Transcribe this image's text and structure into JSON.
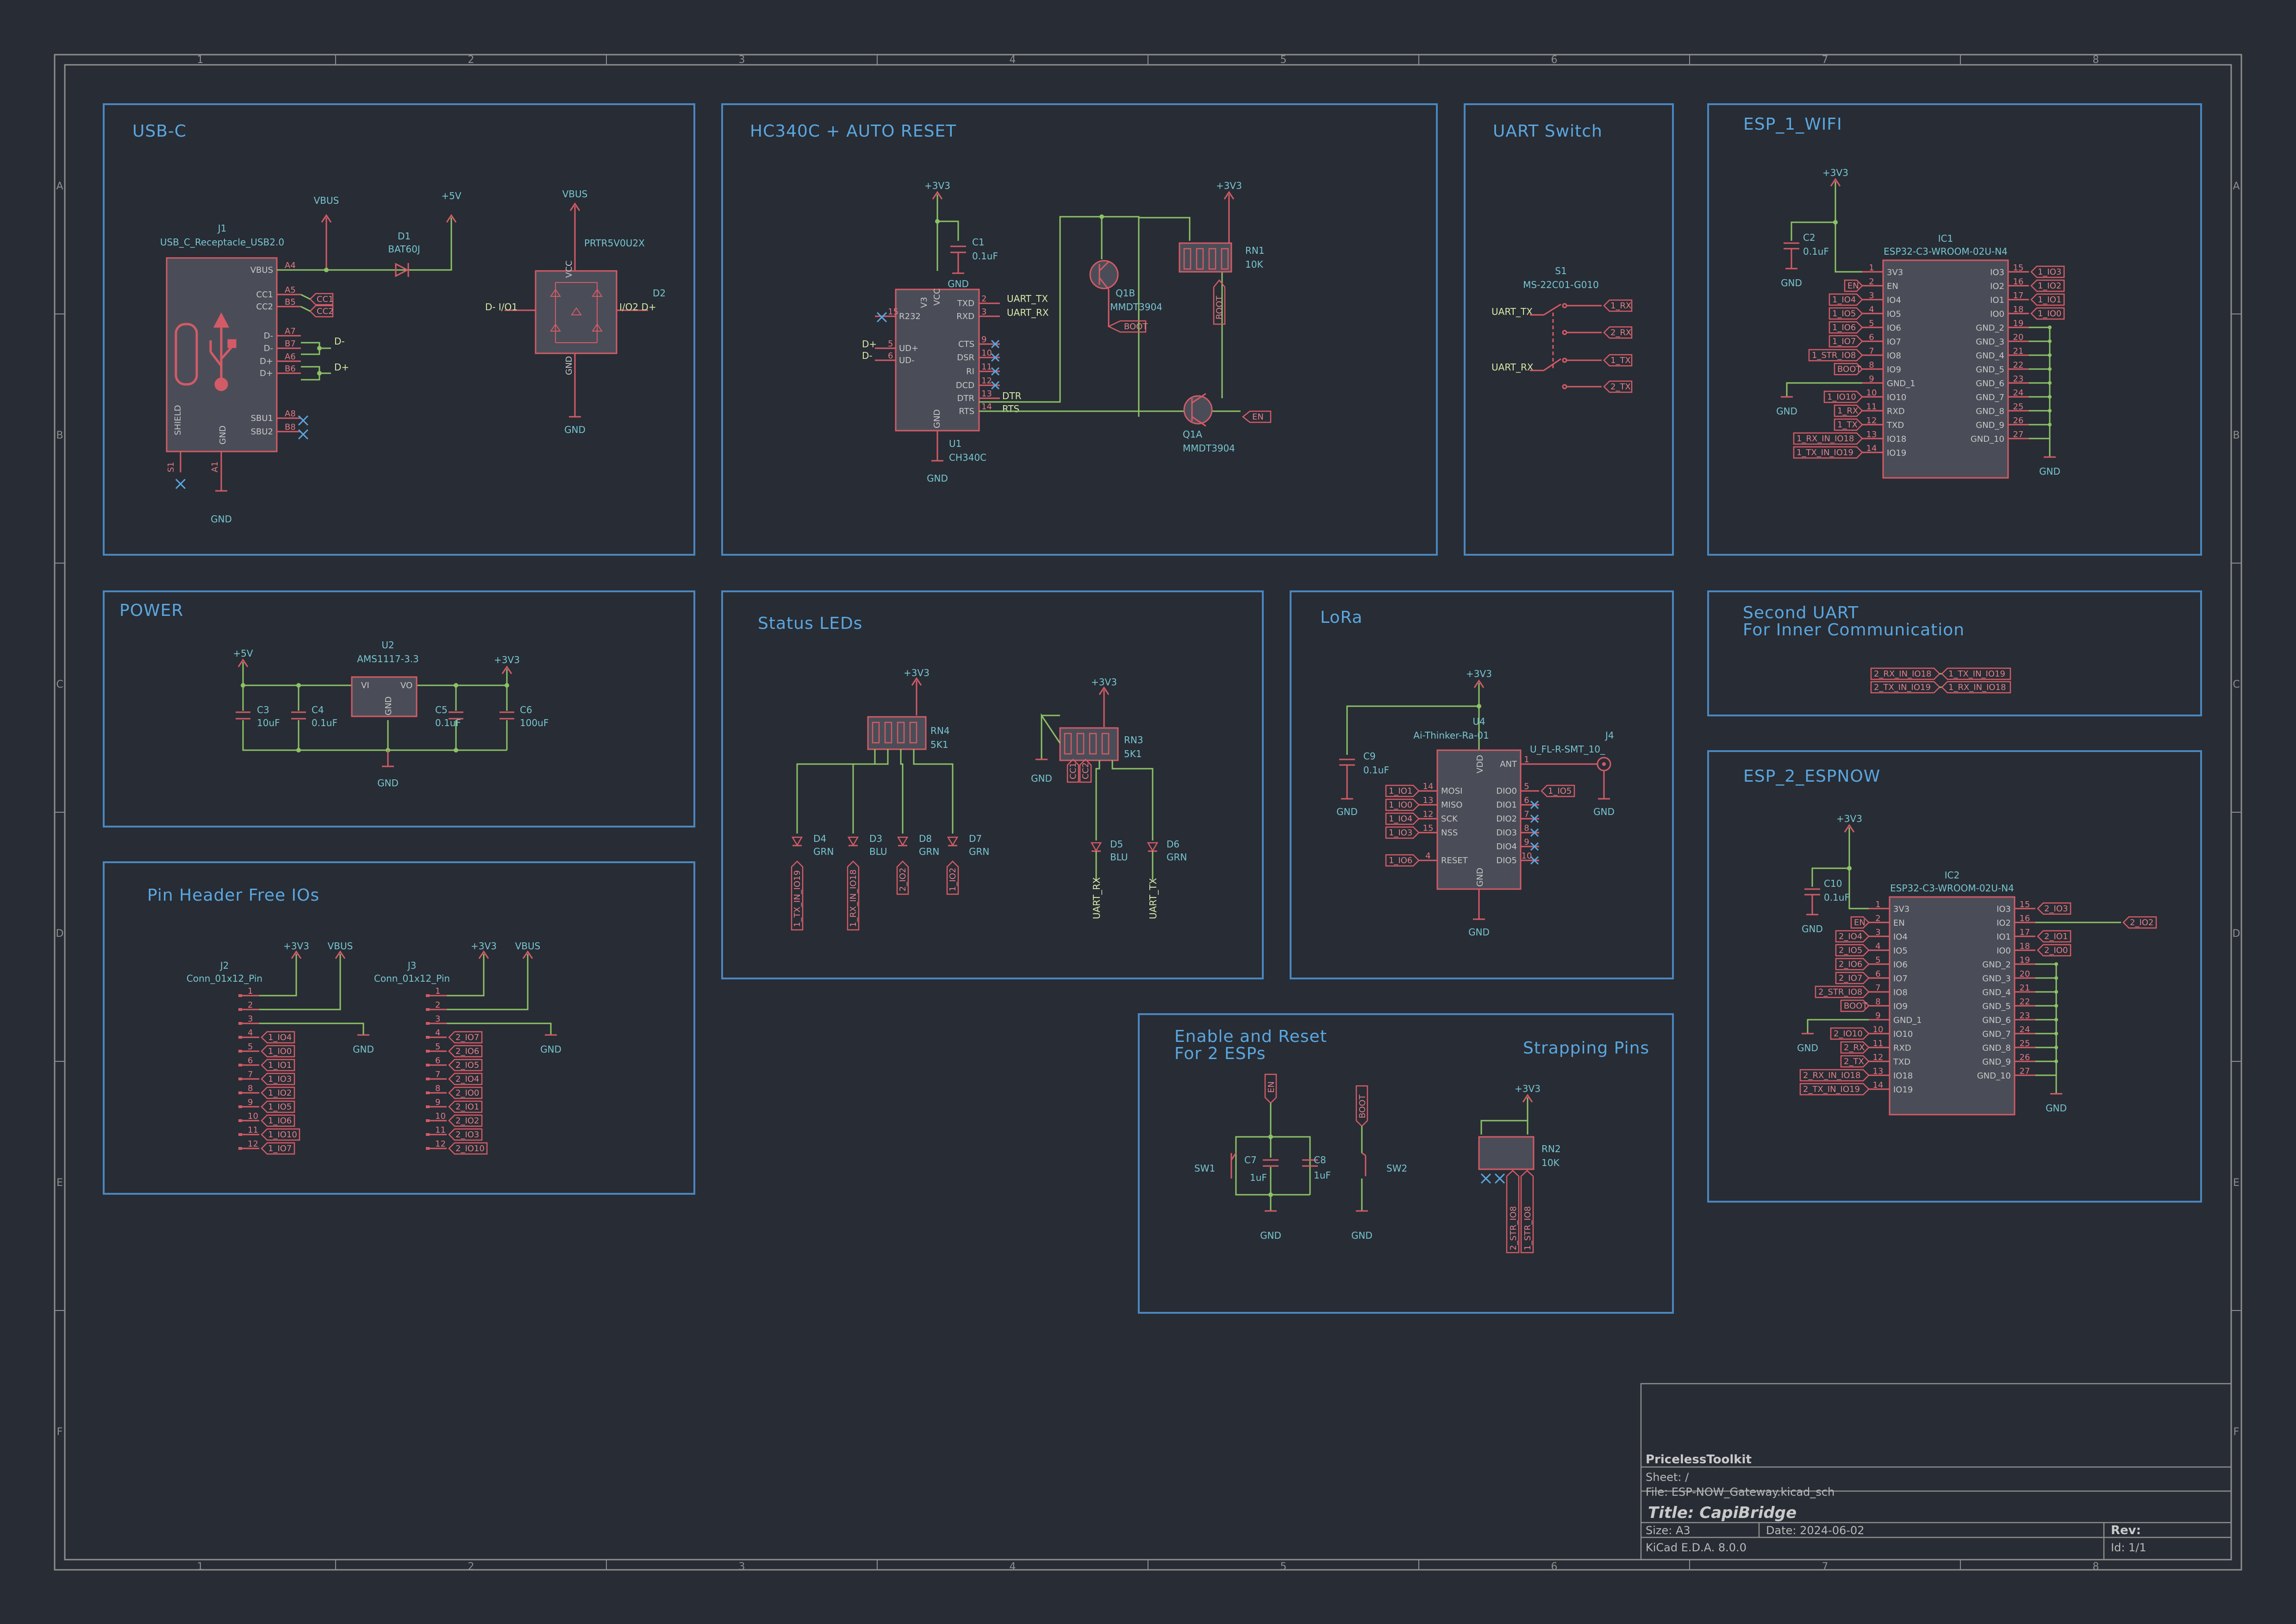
{
  "blocks": {
    "usbc": "USB-C",
    "hc340": "HC340C + AUTO RESET",
    "uart_switch": "UART Switch",
    "esp1": "ESP_1_WIFI",
    "power": "POWER",
    "status_leds": "Status LEDs",
    "lora": "LoRa",
    "second_uart_1": "Second UART",
    "second_uart_2": "For Inner Communication",
    "esp2": "ESP_2_ESPNOW",
    "pin_header": "Pin Header Free IOs",
    "enable_reset_1": "Enable and Reset",
    "enable_reset_2": "For 2 ESPs",
    "strapping": "Strapping Pins"
  },
  "usbc": {
    "ref": "J1",
    "value": "USB_C_Receptacle_USB2.0",
    "vbus": "VBUS",
    "v5": "+5V",
    "d1_ref": "D1",
    "d1_val": "BAT60J",
    "pins_left": [
      "VBUS",
      "CC1",
      "CC2",
      "D-",
      "D-",
      "D+",
      "D+",
      "SBU1",
      "SBU2"
    ],
    "pin_nums": [
      "A4",
      "A5",
      "B5",
      "A7",
      "B7",
      "A6",
      "B6",
      "A8",
      "B8"
    ],
    "cc1": "CC1",
    "cc2": "CC2",
    "dm": "D-",
    "dp": "D+",
    "shield": "SHIELD",
    "gnd_pin": "GND",
    "s1": "S1",
    "a1": "A1",
    "gnd": "GND",
    "esd_ref": "D2",
    "esd_val": "PRTR5V0U2X",
    "esd_vbus": "VBUS",
    "esd_gnd": "GND",
    "io1": "D- I/O1",
    "io2": "I/O2 D+",
    "vcc": "VCC",
    "gndp": "GND"
  },
  "hc340": {
    "v33": "+3V3",
    "c1_ref": "C1",
    "c1_val": "0.1uF",
    "gnd_c": "GND",
    "u1_ref": "U1",
    "u1_val": "CH340C",
    "pins_left": [
      "R232",
      "UD+",
      "UD-"
    ],
    "pins_right": [
      "TXD",
      "RXD",
      "CTS",
      "DSR",
      "RI",
      "DCD",
      "DTR",
      "RTS"
    ],
    "vcc": "VCC",
    "v3": "V3",
    "gndp": "GND",
    "dp": "D+",
    "dm": "D-",
    "uart_tx": "UART_TX",
    "uart_rx": "UART_RX",
    "dtr": "DTR",
    "rts": "RTS",
    "q1b_ref": "Q1B",
    "q1b_val": "MMDT3904",
    "q1a_ref": "Q1A",
    "q1a_val": "MMDT3904",
    "boot": "BOOT",
    "en": "EN",
    "rn1_ref": "RN1",
    "rn1_val": "10K",
    "v33b": "+3V3",
    "gnd": "GND"
  },
  "uart_switch": {
    "ref": "S1",
    "value": "MS-22C01-G010",
    "uart_tx": "UART_TX",
    "uart_rx": "UART_RX",
    "out": [
      "1_RX",
      "2_RX",
      "1_TX",
      "2_TX"
    ]
  },
  "esp1": {
    "v33": "+3V3",
    "c2_ref": "C2",
    "c2_val": "0.1uF",
    "gnd": "GND",
    "ic_ref": "IC1",
    "ic_val": "ESP32-C3-WROOM-02U-N4",
    "left_pins": [
      "3V3",
      "EN",
      "IO4",
      "IO5",
      "IO6",
      "IO7",
      "IO8",
      "IO9",
      "GND_1",
      "IO10",
      "RXD",
      "TXD",
      "IO18",
      "IO19"
    ],
    "left_nums": [
      "1",
      "2",
      "3",
      "4",
      "5",
      "6",
      "7",
      "8",
      "9",
      "10",
      "11",
      "12",
      "13",
      "14"
    ],
    "left_labels": [
      "EN",
      "1_IO4",
      "1_IO5",
      "1_IO6",
      "1_IO7",
      "1_STR_IO8",
      "BOOT",
      "1_IO10",
      "1_RX",
      "1_TX",
      "1_RX_IN_IO18",
      "1_TX_IN_IO19"
    ],
    "right_pins": [
      "IO3",
      "IO2",
      "IO1",
      "IO0",
      "GND_2",
      "GND_3",
      "GND_4",
      "GND_5",
      "GND_6",
      "GND_7",
      "GND_8",
      "GND_9",
      "GND_10"
    ],
    "right_nums": [
      "15",
      "16",
      "17",
      "18",
      "19",
      "20",
      "21",
      "22",
      "23",
      "24",
      "25",
      "26",
      "27"
    ],
    "right_labels": [
      "1_IO3",
      "1_IO2",
      "1_IO1",
      "1_IO0"
    ],
    "gnd_r": "GND"
  },
  "power": {
    "v5": "+5V",
    "v33": "+3V3",
    "u2_ref": "U2",
    "u2_val": "AMS1117-3.3",
    "vi": "VI",
    "vo": "VO",
    "gndp": "GND",
    "c3": "C3",
    "c3v": "10uF",
    "c4": "C4",
    "c4v": "0.1uF",
    "c5": "C5",
    "c5v": "0.1uF",
    "c6": "C6",
    "c6v": "100uF",
    "gnd": "GND"
  },
  "status_leds": {
    "v33a": "+3V3",
    "rn4_ref": "RN4",
    "rn4_val": "5K1",
    "v33b": "+3V3",
    "rn3_ref": "RN3",
    "rn3_val": "5K1",
    "gnd": "GND",
    "leds": [
      {
        "ref": "D4",
        "val": "GRN",
        "net": "1_TX_IN_IO19"
      },
      {
        "ref": "D3",
        "val": "BLU",
        "net": "1_RX_IN_IO18"
      },
      {
        "ref": "D8",
        "val": "GRN",
        "net": "2_IO2"
      },
      {
        "ref": "D7",
        "val": "GRN",
        "net": "1_IO2"
      }
    ],
    "cc": [
      "CC1",
      "CC2"
    ],
    "leds2": [
      {
        "ref": "D5",
        "val": "BLU",
        "net": "UART_RX"
      },
      {
        "ref": "D6",
        "val": "GRN",
        "net": "UART_TX"
      }
    ]
  },
  "lora": {
    "v33": "+3V3",
    "c9_ref": "C9",
    "c9_val": "0.1uF",
    "gnd": "GND",
    "u4_ref": "U4",
    "u4_val": "Ai-Thinker-Ra-01",
    "left_pins": [
      "MOSI",
      "MISO",
      "SCK",
      "NSS",
      "RESET"
    ],
    "left_nets": [
      "1_IO1",
      "1_IO0",
      "1_IO4",
      "1_IO3",
      "1_IO6"
    ],
    "right_pins": [
      "ANT",
      "DIO0",
      "DIO1",
      "DIO2",
      "DIO3",
      "DIO4",
      "DIO5"
    ],
    "vdd": "VDD",
    "gndp": "GND",
    "dio0_net": "1_IO5",
    "j4_ref": "J4",
    "j4_val": "U_FL-R-SMT_10_"
  },
  "second_uart": {
    "rows": [
      [
        "2_RX_IN_IO18",
        "1_TX_IN_IO19"
      ],
      [
        "2_TX_IN_IO19",
        "1_RX_IN_IO18"
      ]
    ]
  },
  "esp2": {
    "v33": "+3V3",
    "c10_ref": "C10",
    "c10_val": "0.1uF",
    "gnd": "GND",
    "ic_ref": "IC2",
    "ic_val": "ESP32-C3-WROOM-02U-N4",
    "left_pins": [
      "3V3",
      "EN",
      "IO4",
      "IO5",
      "IO6",
      "IO7",
      "IO8",
      "IO9",
      "GND_1",
      "IO10",
      "RXD",
      "TXD",
      "IO18",
      "IO19"
    ],
    "left_labels": [
      "EN",
      "2_IO4",
      "2_IO5",
      "2_IO6",
      "2_IO7",
      "2_STR_IO8",
      "BOOT",
      "2_IO10",
      "2_RX",
      "2_TX",
      "2_RX_IN_IO18",
      "2_TX_IN_IO19"
    ],
    "right_pins": [
      "IO3",
      "IO2",
      "IO1",
      "IO0",
      "GND_2",
      "GND_3",
      "GND_4",
      "GND_5",
      "GND_6",
      "GND_7",
      "GND_8",
      "GND_9",
      "GND_10"
    ],
    "right_labels": [
      "2_IO3",
      "2_IO2",
      "2_IO1",
      "2_IO0"
    ],
    "gnd_r": "GND"
  },
  "pin_header": {
    "j2_ref": "J2",
    "j2_val": "Conn_01x12_Pin",
    "j3_ref": "J3",
    "j3_val": "Conn_01x12_Pin",
    "v33": "+3V3",
    "vbus": "VBUS",
    "gnd": "GND",
    "j2_nets": [
      "1_IO4",
      "1_IO0",
      "1_IO1",
      "1_IO3",
      "1_IO2",
      "1_IO5",
      "1_IO6",
      "1_IO10",
      "1_IO7"
    ],
    "j3_nets": [
      "2_IO7",
      "2_IO6",
      "2_IO5",
      "2_IO4",
      "2_IO0",
      "2_IO1",
      "2_IO2",
      "2_IO3",
      "2_IO10"
    ]
  },
  "enable_reset": {
    "sw1": "SW1",
    "sw2": "SW2",
    "c7": "C7",
    "c7v": "1uF",
    "c8": "C8",
    "c8v": "1uF",
    "en": "EN",
    "boot": "BOOT",
    "gnd": "GND",
    "rn2_ref": "RN2",
    "rn2_val": "10K",
    "v33": "+3V3",
    "str1": "2_STR_IO8",
    "str2": "1_STR_IO8"
  },
  "title_block": {
    "company": "PricelessToolkit",
    "sheet": "Sheet: /",
    "file": "File: ESP-NOW_Gateway.kicad_sch",
    "title": "Title: CapiBridge",
    "size": "Size: A3",
    "date": "Date: 2024-06-02",
    "rev": "Rev:",
    "tool": "KiCad E.D.A. 8.0.0",
    "id": "Id: 1/1"
  },
  "frame": {
    "cols": [
      "1",
      "2",
      "3",
      "4",
      "5",
      "6",
      "7",
      "8"
    ],
    "rows": [
      "A",
      "B",
      "C",
      "D",
      "E",
      "F"
    ]
  },
  "colors": {
    "background": "#282c34",
    "block_border": "#4a87bf",
    "wire": "#8bc266",
    "symbol": "#d35b67",
    "label": "#76c6d2"
  }
}
